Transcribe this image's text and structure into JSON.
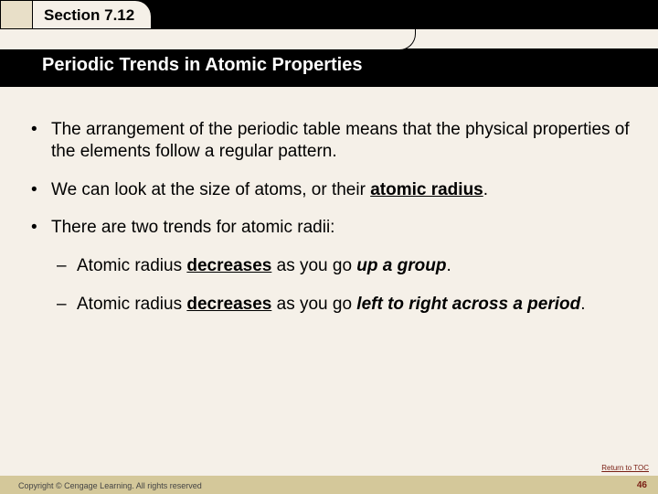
{
  "colors": {
    "background": "#f5f0e8",
    "header_black": "#000000",
    "tab_beige": "#e8dfc8",
    "footer_tan": "#d4c89a",
    "accent_red": "#7a2015",
    "text": "#000000",
    "subtitle_text": "#ffffff"
  },
  "typography": {
    "body_fontsize": 19,
    "section_fontsize": 17,
    "subtitle_fontsize": 20,
    "footer_fontsize": 9
  },
  "header": {
    "section_label": "Section 7.12",
    "subtitle": "Periodic Trends in Atomic Properties"
  },
  "bullets": {
    "b1": "The arrangement of the periodic table means that the physical properties of the elements follow a regular pattern.",
    "b2_pre": "We can look at the size of atoms, or their ",
    "b2_term": "atomic radius",
    "b2_post": ".",
    "b3": "There are two trends for atomic radii:",
    "s1_pre": "Atomic radius ",
    "s1_dec": "decreases",
    "s1_mid": " as you go ",
    "s1_dir": "up a group",
    "s1_post": ".",
    "s2_pre": "Atomic radius ",
    "s2_dec": "decreases",
    "s2_mid": " as you go ",
    "s2_dir": "left to right across a period",
    "s2_post": "."
  },
  "footer": {
    "copyright": "Copyright © Cengage Learning. All rights reserved",
    "toc": "Return to TOC",
    "page": "46"
  }
}
